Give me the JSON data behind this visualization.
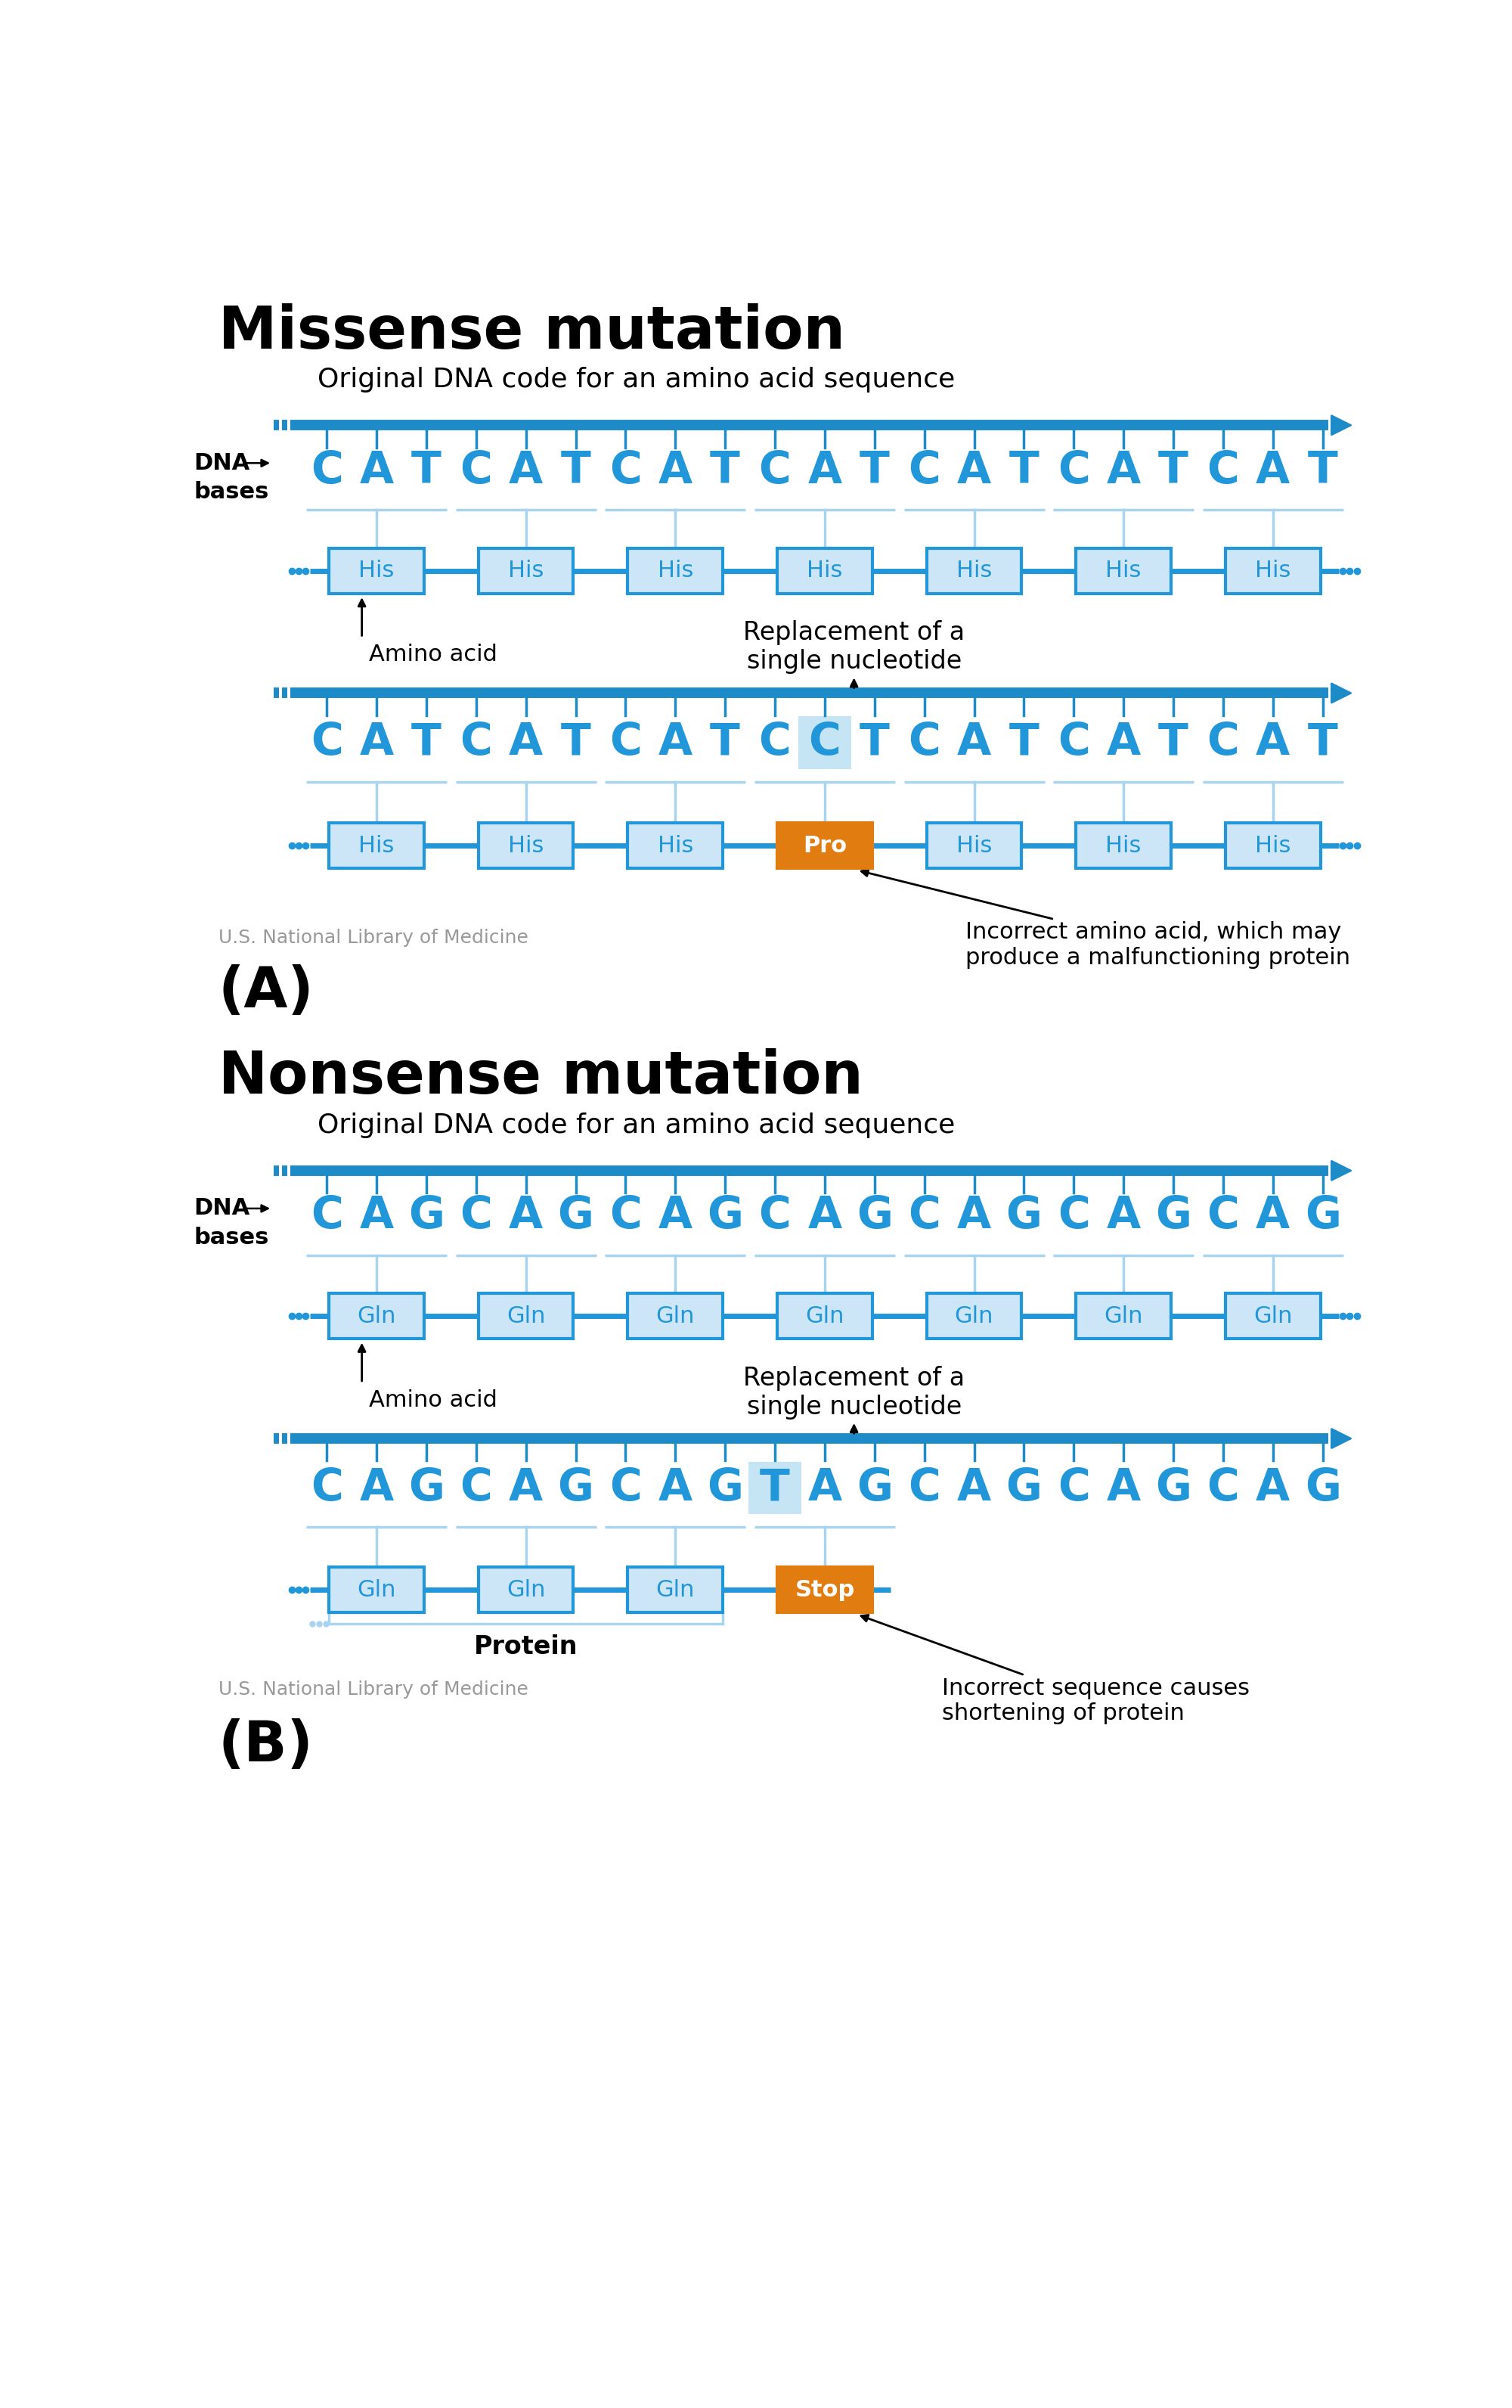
{
  "fig_width": 20.0,
  "fig_height": 31.84,
  "bg_color": "#ffffff",
  "blue_dark": "#1e8bc9",
  "blue_mid": "#2196d9",
  "blue_light": "#a8d4f0",
  "blue_lighter": "#cce6f8",
  "blue_bracket": "#7bbde0",
  "orange": "#e07c10",
  "section_A": {
    "title": "Missense mutation",
    "subtitle": "Original DNA code for an amino acid sequence",
    "original_bases": [
      "C",
      "A",
      "T",
      "C",
      "A",
      "T",
      "C",
      "A",
      "T",
      "C",
      "A",
      "T",
      "C",
      "A",
      "T",
      "C",
      "A",
      "T",
      "C",
      "A",
      "T"
    ],
    "original_acids": [
      "His",
      "His",
      "His",
      "His",
      "His",
      "His",
      "His"
    ],
    "replacement_label": "Replacement of a\nsingle nucleotide",
    "mutated_bases": [
      "C",
      "A",
      "T",
      "C",
      "A",
      "T",
      "C",
      "A",
      "T",
      "C",
      "C",
      "T",
      "C",
      "A",
      "T",
      "C",
      "A",
      "T",
      "C",
      "A",
      "T"
    ],
    "mutated_highlight_idx": 10,
    "mutated_acids": [
      "His",
      "His",
      "His",
      "Pro",
      "His",
      "His",
      "His"
    ],
    "mutated_acid_special_idx": 3,
    "incorrect_label": "Incorrect amino acid, which may\nproduce a malfunctioning protein",
    "credit": "U.S. National Library of Medicine",
    "panel_label": "(A)"
  },
  "section_B": {
    "title": "Nonsense mutation",
    "subtitle": "Original DNA code for an amino acid sequence",
    "original_bases": [
      "C",
      "A",
      "G",
      "C",
      "A",
      "G",
      "C",
      "A",
      "G",
      "C",
      "A",
      "G",
      "C",
      "A",
      "G",
      "C",
      "A",
      "G",
      "C",
      "A",
      "G"
    ],
    "original_acids": [
      "Gln",
      "Gln",
      "Gln",
      "Gln",
      "Gln",
      "Gln",
      "Gln"
    ],
    "replacement_label": "Replacement of a\nsingle nucleotide",
    "mutated_bases": [
      "C",
      "A",
      "G",
      "C",
      "A",
      "G",
      "C",
      "A",
      "G",
      "T",
      "A",
      "G",
      "C",
      "A",
      "G",
      "C",
      "A",
      "G",
      "C",
      "A",
      "G"
    ],
    "mutated_highlight_idx": 9,
    "mutated_acids": [
      "Gln",
      "Gln",
      "Gln",
      "Stop"
    ],
    "mutated_acid_special_idx": 3,
    "protein_label": "Protein",
    "incorrect_label": "Incorrect sequence causes\nshortening of protein",
    "credit": "U.S. National Library of Medicine",
    "panel_label": "(B)"
  }
}
